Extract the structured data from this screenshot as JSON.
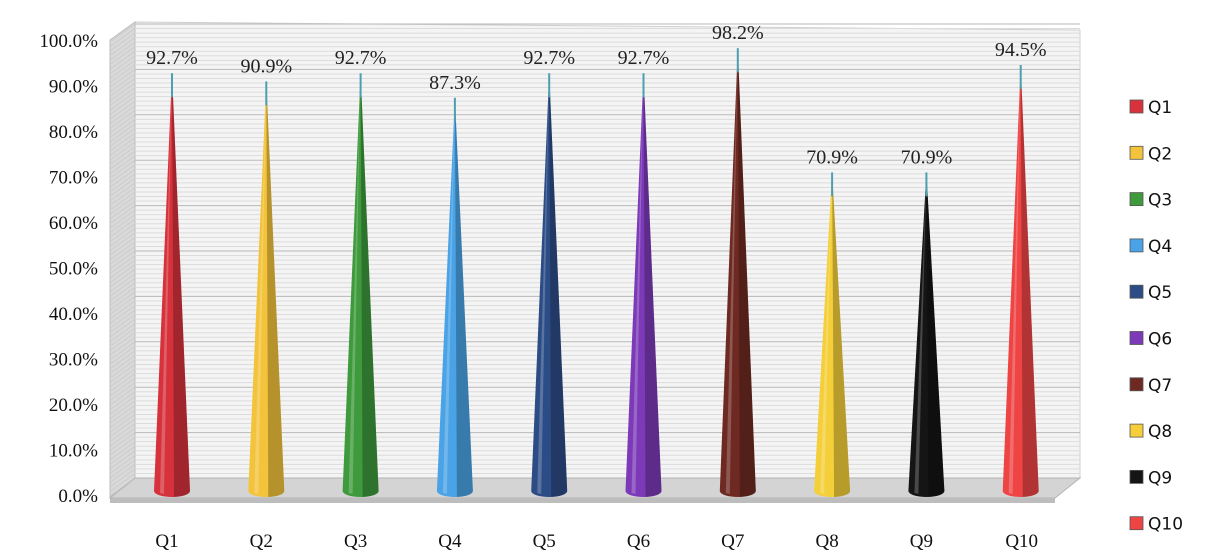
{
  "chart_data": {
    "type": "bar",
    "subtype": "3d-cone",
    "title": "",
    "xlabel": "",
    "ylabel": "",
    "ylim": [
      0,
      100
    ],
    "y_ticks": [
      "0.0%",
      "10.0%",
      "20.0%",
      "30.0%",
      "40.0%",
      "50.0%",
      "60.0%",
      "70.0%",
      "80.0%",
      "90.0%",
      "100.0%"
    ],
    "categories": [
      "Q1",
      "Q2",
      "Q3",
      "Q4",
      "Q5",
      "Q6",
      "Q7",
      "Q8",
      "Q9",
      "Q10"
    ],
    "values": [
      92.7,
      90.9,
      92.7,
      87.3,
      92.7,
      92.7,
      98.2,
      70.9,
      70.9,
      94.5
    ],
    "value_labels": [
      "92.7%",
      "90.9%",
      "92.7%",
      "87.3%",
      "92.7%",
      "92.7%",
      "98.2%",
      "70.9%",
      "70.9%",
      "94.5%"
    ],
    "colors": [
      "#d7323c",
      "#f3c33b",
      "#3e9a3c",
      "#4aa3e6",
      "#2c4c86",
      "#7d3ab8",
      "#6e2a22",
      "#f5cf3a",
      "#151515",
      "#ee4444"
    ],
    "legend": {
      "position": "right",
      "entries": [
        "Q1",
        "Q2",
        "Q3",
        "Q4",
        "Q5",
        "Q6",
        "Q7",
        "Q8",
        "Q9",
        "Q10"
      ]
    },
    "grid": true
  }
}
